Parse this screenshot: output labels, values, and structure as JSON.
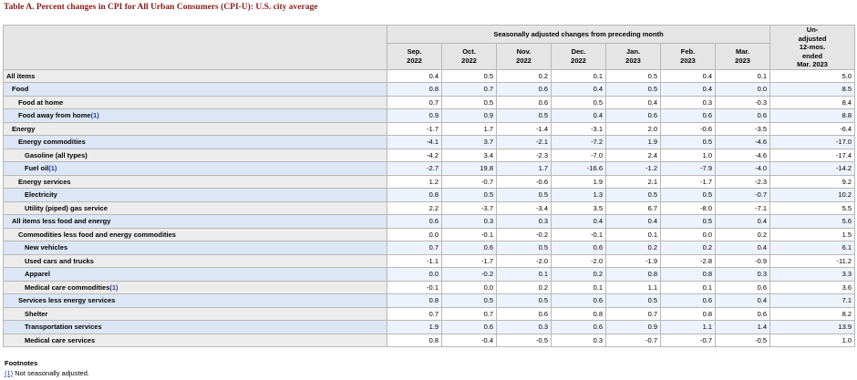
{
  "caption": "Table A. Percent changes in CPI for All Urban Consumers (CPI-U): U.S. city average",
  "header": {
    "group_label": "Seasonally adjusted changes from preceding month",
    "columns": [
      [
        "Sep.",
        "2022"
      ],
      [
        "Oct.",
        "2022"
      ],
      [
        "Nov.",
        "2022"
      ],
      [
        "Dec.",
        "2022"
      ],
      [
        "Jan.",
        "2023"
      ],
      [
        "Feb.",
        "2023"
      ],
      [
        "Mar.",
        "2023"
      ]
    ],
    "last_column": [
      "Un-",
      "adjusted",
      "12-mos.",
      "ended",
      "Mar. 2023"
    ]
  },
  "rows": [
    {
      "label": "All items",
      "level": 0,
      "note": null,
      "values": [
        "0.4",
        "0.5",
        "0.2",
        "0.1",
        "0.5",
        "0.4",
        "0.1",
        "5.0"
      ]
    },
    {
      "label": "Food",
      "level": 1,
      "note": null,
      "values": [
        "0.8",
        "0.7",
        "0.6",
        "0.4",
        "0.5",
        "0.4",
        "0.0",
        "8.5"
      ]
    },
    {
      "label": "Food at home",
      "level": 2,
      "note": null,
      "values": [
        "0.7",
        "0.5",
        "0.6",
        "0.5",
        "0.4",
        "0.3",
        "-0.3",
        "8.4"
      ]
    },
    {
      "label": "Food away from home",
      "level": 2,
      "note": "1",
      "values": [
        "0.9",
        "0.9",
        "0.5",
        "0.4",
        "0.6",
        "0.6",
        "0.6",
        "8.8"
      ]
    },
    {
      "label": "Energy",
      "level": 1,
      "note": null,
      "values": [
        "-1.7",
        "1.7",
        "-1.4",
        "-3.1",
        "2.0",
        "-0.6",
        "-3.5",
        "-6.4"
      ]
    },
    {
      "label": "Energy commodities",
      "level": 2,
      "note": null,
      "values": [
        "-4.1",
        "3.7",
        "-2.1",
        "-7.2",
        "1.9",
        "0.5",
        "-4.6",
        "-17.0"
      ]
    },
    {
      "label": "Gasoline (all types)",
      "level": 3,
      "note": null,
      "values": [
        "-4.2",
        "3.4",
        "-2.3",
        "-7.0",
        "2.4",
        "1.0",
        "-4.6",
        "-17.4"
      ]
    },
    {
      "label": "Fuel oil",
      "level": 3,
      "note": "1",
      "values": [
        "-2.7",
        "19.8",
        "1.7",
        "-16.6",
        "-1.2",
        "-7.9",
        "-4.0",
        "-14.2"
      ]
    },
    {
      "label": "Energy services",
      "level": 2,
      "note": null,
      "values": [
        "1.2",
        "-0.7",
        "-0.6",
        "1.9",
        "2.1",
        "-1.7",
        "-2.3",
        "9.2"
      ]
    },
    {
      "label": "Electricity",
      "level": 3,
      "note": null,
      "values": [
        "0.8",
        "0.5",
        "0.5",
        "1.3",
        "0.5",
        "0.5",
        "-0.7",
        "10.2"
      ]
    },
    {
      "label": "Utility (piped) gas service",
      "level": 3,
      "note": null,
      "values": [
        "2.2",
        "-3.7",
        "-3.4",
        "3.5",
        "6.7",
        "-8.0",
        "-7.1",
        "5.5"
      ]
    },
    {
      "label": "All items less food and energy",
      "level": 1,
      "note": null,
      "values": [
        "0.6",
        "0.3",
        "0.3",
        "0.4",
        "0.4",
        "0.5",
        "0.4",
        "5.6"
      ]
    },
    {
      "label": "Commodities less food and energy commodities",
      "level": 2,
      "note": null,
      "values": [
        "0.0",
        "-0.1",
        "-0.2",
        "-0.1",
        "0.1",
        "0.0",
        "0.2",
        "1.5"
      ]
    },
    {
      "label": "New vehicles",
      "level": 3,
      "note": null,
      "values": [
        "0.7",
        "0.6",
        "0.5",
        "0.6",
        "0.2",
        "0.2",
        "0.4",
        "6.1"
      ]
    },
    {
      "label": "Used cars and trucks",
      "level": 3,
      "note": null,
      "values": [
        "-1.1",
        "-1.7",
        "-2.0",
        "-2.0",
        "-1.9",
        "-2.8",
        "-0.9",
        "-11.2"
      ]
    },
    {
      "label": "Apparel",
      "level": 3,
      "note": null,
      "values": [
        "0.0",
        "-0.2",
        "0.1",
        "0.2",
        "0.8",
        "0.8",
        "0.3",
        "3.3"
      ]
    },
    {
      "label": "Medical care commodities",
      "level": 3,
      "note": "1",
      "values": [
        "-0.1",
        "0.0",
        "0.2",
        "0.1",
        "1.1",
        "0.1",
        "0.6",
        "3.6"
      ]
    },
    {
      "label": "Services less energy services",
      "level": 2,
      "note": null,
      "values": [
        "0.8",
        "0.5",
        "0.5",
        "0.6",
        "0.5",
        "0.6",
        "0.4",
        "7.1"
      ]
    },
    {
      "label": "Shelter",
      "level": 3,
      "note": null,
      "values": [
        "0.7",
        "0.7",
        "0.6",
        "0.8",
        "0.7",
        "0.8",
        "0.6",
        "8.2"
      ]
    },
    {
      "label": "Transportation services",
      "level": 3,
      "note": null,
      "values": [
        "1.9",
        "0.6",
        "0.3",
        "0.6",
        "0.9",
        "1.1",
        "1.4",
        "13.9"
      ]
    },
    {
      "label": "Medical care services",
      "level": 3,
      "note": null,
      "values": [
        "0.8",
        "-0.4",
        "-0.5",
        "0.3",
        "-0.7",
        "-0.7",
        "-0.5",
        "1.0"
      ]
    }
  ],
  "footnotes": {
    "title": "Footnotes",
    "items": [
      {
        "marker": "(1)",
        "text": " Not seasonally adjusted."
      }
    ]
  }
}
